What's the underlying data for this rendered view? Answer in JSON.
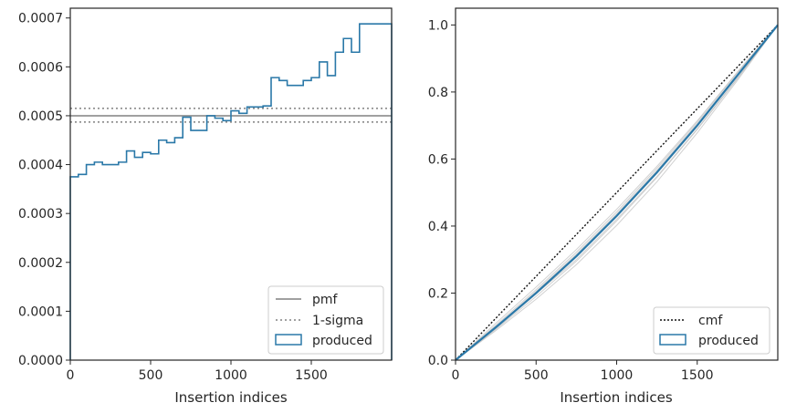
{
  "chart_data": [
    {
      "type": "histogram-step",
      "xlabel": "Insertion indices",
      "ylabel": "",
      "xlim": [
        0,
        2000
      ],
      "ylim": [
        0,
        0.00072
      ],
      "xticks": [
        0,
        500,
        1000,
        1500
      ],
      "yticks": [
        0,
        0.0001,
        0.0002,
        0.0003,
        0.0004,
        0.0005,
        0.0006,
        0.0007
      ],
      "ytick_labels": [
        "0.0000",
        "0.0001",
        "0.0002",
        "0.0003",
        "0.0004",
        "0.0005",
        "0.0006",
        "0.0007"
      ],
      "grid": false,
      "legend": {
        "placement": "bottom-right",
        "entries": [
          "pmf",
          "1-sigma",
          "produced"
        ]
      },
      "reference_lines": [
        {
          "name": "pmf",
          "y": 0.0005,
          "style": "solid",
          "color": "#808080"
        },
        {
          "name": "1-sigma",
          "y": 0.000515,
          "style": "dotted",
          "color": "#808080"
        },
        {
          "name": "1-sigma",
          "y": 0.000487,
          "style": "dotted",
          "color": "#808080"
        }
      ],
      "series": [
        {
          "name": "produced",
          "color": "#2a78a8",
          "bin_edges": [
            0,
            50,
            100,
            150,
            200,
            250,
            300,
            350,
            400,
            450,
            500,
            550,
            600,
            650,
            700,
            750,
            800,
            850,
            900,
            950,
            1000,
            1050,
            1100,
            1150,
            1200,
            1250,
            1300,
            1350,
            1400,
            1450,
            1500,
            1550,
            1600,
            1650,
            1700,
            1750,
            1800,
            1850,
            1900,
            1950,
            2000
          ],
          "values": [
            0.000375,
            0.00038,
            0.0004,
            0.000405,
            0.0004,
            0.0004,
            0.000405,
            0.000428,
            0.000415,
            0.000425,
            0.000422,
            0.00045,
            0.000445,
            0.000455,
            0.000497,
            0.00047,
            0.00047,
            0.0005,
            0.000495,
            0.00049,
            0.00051,
            0.000505,
            0.000518,
            0.000518,
            0.00052,
            0.000578,
            0.000572,
            0.000562,
            0.000562,
            0.000572,
            0.000578,
            0.00061,
            0.000582,
            0.00063,
            0.000658,
            0.00063,
            0.000688,
            0.000688,
            0.000688,
            0.000688
          ]
        }
      ]
    },
    {
      "type": "line",
      "xlabel": "Insertion indices",
      "ylabel": "",
      "xlim": [
        0,
        2000
      ],
      "ylim": [
        0,
        1.05
      ],
      "xticks": [
        0,
        500,
        1000,
        1500
      ],
      "yticks": [
        0,
        0.2,
        0.4,
        0.6,
        0.8,
        1.0
      ],
      "ytick_labels": [
        "0.0",
        "0.2",
        "0.4",
        "0.6",
        "0.8",
        "1.0"
      ],
      "grid": false,
      "legend": {
        "placement": "bottom-right",
        "entries": [
          "cmf",
          "produced"
        ]
      },
      "series": [
        {
          "name": "cmf",
          "style": "dotted",
          "color": "#111111",
          "x": [
            0,
            2000
          ],
          "y": [
            0,
            1.0
          ]
        },
        {
          "name": "produced",
          "style": "solid",
          "color": "#2a78a8",
          "x": [
            0,
            250,
            500,
            750,
            1000,
            1250,
            1500,
            1750,
            2000
          ],
          "y": [
            0,
            0.098,
            0.2,
            0.31,
            0.43,
            0.56,
            0.7,
            0.85,
            1.0
          ]
        }
      ],
      "faint_samples": {
        "color": "#bdbdbd",
        "x": [
          0,
          250,
          500,
          750,
          1000,
          1250,
          1500,
          1750,
          2000
        ],
        "y_sets": [
          [
            0,
            0.092,
            0.19,
            0.295,
            0.415,
            0.545,
            0.688,
            0.84,
            1.0
          ],
          [
            0,
            0.104,
            0.21,
            0.322,
            0.442,
            0.572,
            0.71,
            0.858,
            1.0
          ],
          [
            0,
            0.088,
            0.182,
            0.285,
            0.402,
            0.532,
            0.678,
            0.835,
            1.0
          ],
          [
            0,
            0.11,
            0.218,
            0.33,
            0.45,
            0.578,
            0.714,
            0.86,
            1.0
          ],
          [
            0,
            0.095,
            0.198,
            0.3,
            0.42,
            0.548,
            0.69,
            0.842,
            1.0
          ],
          [
            0,
            0.1,
            0.205,
            0.316,
            0.436,
            0.566,
            0.705,
            0.853,
            1.0
          ]
        ]
      }
    }
  ]
}
